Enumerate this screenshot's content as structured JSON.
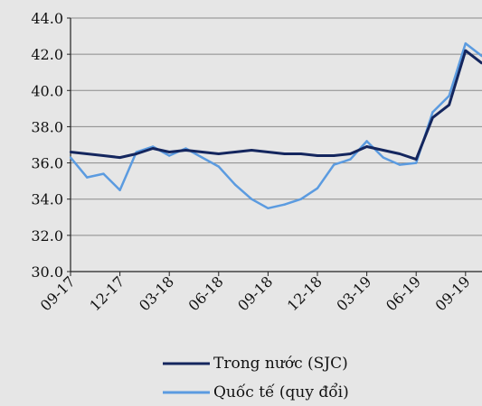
{
  "chart_data": {
    "type": "line",
    "title": "",
    "xlabel": "",
    "ylabel": "",
    "ylim": [
      30.0,
      44.0
    ],
    "y_ticks": [
      "30.0",
      "32.0",
      "34.0",
      "36.0",
      "38.0",
      "40.0",
      "42.0",
      "44.0"
    ],
    "x_ticks": [
      "09-17",
      "12-17",
      "03-18",
      "06-18",
      "09-18",
      "12-18",
      "03-19",
      "06-19",
      "09-19"
    ],
    "grid": "horizontal",
    "legend_position": "bottom",
    "x": [
      "09-17",
      "10-17",
      "11-17",
      "12-17",
      "01-18",
      "02-18",
      "03-18",
      "04-18",
      "05-18",
      "06-18",
      "07-18",
      "08-18",
      "09-18",
      "10-18",
      "11-18",
      "12-18",
      "01-19",
      "02-19",
      "03-19",
      "04-19",
      "05-19",
      "06-19",
      "07-19",
      "08-19",
      "09-19",
      "10-19"
    ],
    "series": [
      {
        "name": "Trong nước (SJC)",
        "color": "#14265e",
        "values": [
          36.6,
          36.5,
          36.4,
          36.3,
          36.5,
          36.8,
          36.6,
          36.7,
          36.6,
          36.5,
          36.6,
          36.7,
          36.6,
          36.5,
          36.5,
          36.4,
          36.4,
          36.5,
          36.9,
          36.7,
          36.5,
          36.2,
          38.5,
          39.2,
          42.2,
          41.5
        ]
      },
      {
        "name": "Quốc tế (quy đổi)",
        "color": "#5b9be0",
        "values": [
          36.3,
          35.2,
          35.4,
          34.5,
          36.6,
          36.9,
          36.4,
          36.8,
          36.3,
          35.8,
          34.8,
          34.0,
          33.5,
          33.7,
          34.0,
          34.6,
          35.9,
          36.2,
          37.2,
          36.3,
          35.9,
          36.0,
          38.8,
          39.7,
          42.6,
          41.9
        ]
      }
    ]
  }
}
